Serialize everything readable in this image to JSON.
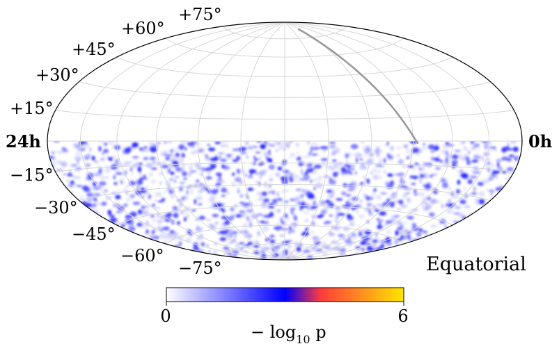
{
  "chart_data": {
    "type": "heatmap",
    "projection": "Hammer-Aitoff",
    "coordinate_system_label": "Equatorial",
    "ra_left_label": "24h",
    "ra_right_label": "0h",
    "dec_labels_north": [
      "+15°",
      "+30°",
      "+45°",
      "+60°",
      "+75°"
    ],
    "dec_labels_south": [
      "−15°",
      "−30°",
      "−45°",
      "−60°",
      "−75°"
    ],
    "dec_range_deg": [
      -90,
      90
    ],
    "ra_range_hours": [
      0,
      24
    ],
    "data_coverage_dec_deg": [
      -90,
      0
    ],
    "graticule": {
      "ra_step_deg": 30,
      "dec_step_deg": 15
    },
    "colorbar": {
      "label_main": "− log",
      "label_sub": "10",
      "label_end": " p",
      "min": 0,
      "max": 6,
      "min_label": "0",
      "max_label": "6",
      "colors": [
        "#ffffff",
        "#0000ff",
        "#ff3b3b",
        "#ffe600"
      ],
      "stops": [
        0,
        0.5,
        0.65,
        1
      ]
    },
    "galactic_plane_color": "#999999",
    "hotspot_color": "#2a2aff"
  }
}
